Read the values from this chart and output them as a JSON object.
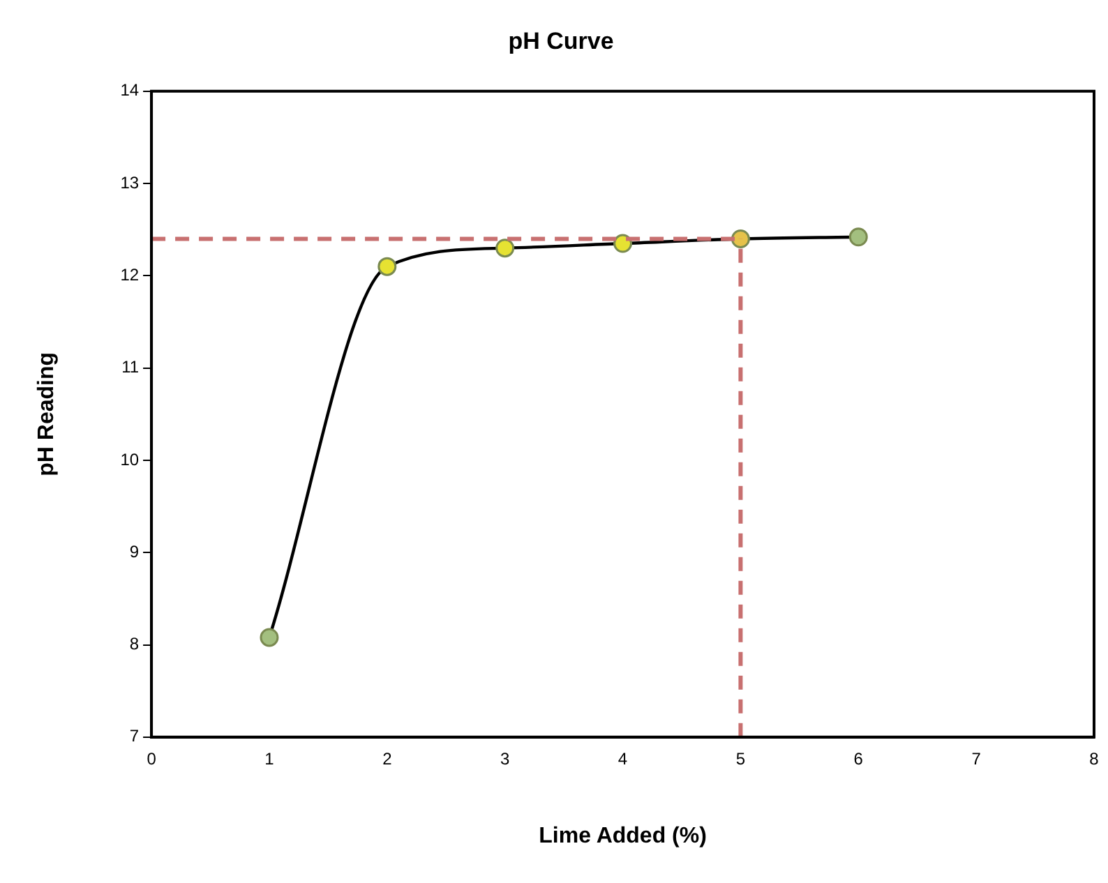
{
  "chart_data": {
    "type": "line",
    "title": "pH Curve",
    "xlabel": "Lime Added (%)",
    "ylabel": "pH Reading",
    "x": [
      1,
      2,
      3,
      4,
      5,
      6
    ],
    "series": [
      {
        "color": "#000000",
        "colors": [
          "#a3bf7f",
          "#e6e232",
          "#e6e232",
          "#e6e232",
          "#e6c24a",
          "#a3bf7f"
        ],
        "values": [
          8.08,
          12.1,
          12.3,
          12.35,
          12.4,
          12.42
        ]
      }
    ],
    "xlim": [
      0,
      8
    ],
    "xticks": [
      0,
      1,
      2,
      3,
      4,
      5,
      6,
      7,
      8
    ],
    "ylim": [
      7,
      14
    ],
    "yticks": [
      7,
      8,
      9,
      10,
      11,
      12,
      13,
      14
    ],
    "ref_lines": [
      {
        "axis": "y",
        "value": 12.4,
        "color": "#c87070",
        "line_style": "dashed"
      },
      {
        "axis": "x",
        "value": 5,
        "color": "#c87070",
        "line_style": "dashed"
      }
    ],
    "grid": false,
    "legend": false,
    "marker": "circle",
    "line_style": "solid"
  }
}
